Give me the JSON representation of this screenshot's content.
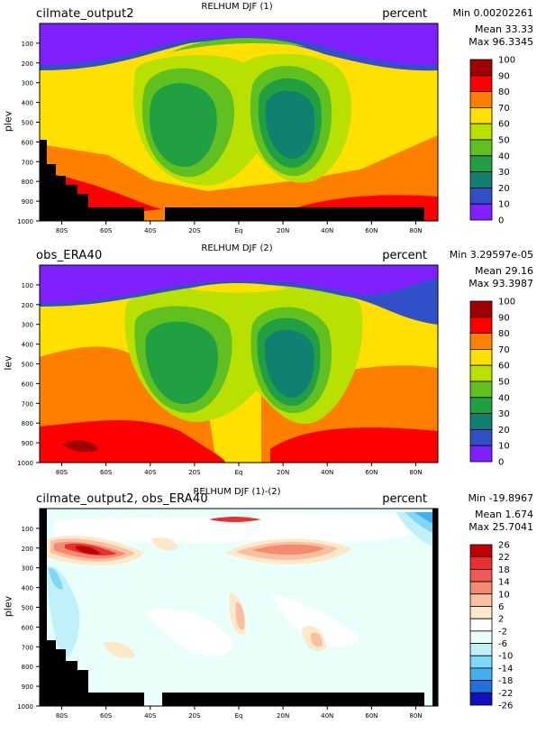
{
  "axes": {
    "x_ticks": [
      "80S",
      "60S",
      "40S",
      "20S",
      "Eq",
      "20N",
      "40N",
      "60N",
      "80N"
    ],
    "y_ticks": [
      "100",
      "200",
      "300",
      "400",
      "500",
      "600",
      "700",
      "800",
      "900",
      "1000"
    ]
  },
  "panels": [
    {
      "id": "p1",
      "title_left": "cilmate_output2",
      "title_center": "RELHUM DJF (1)",
      "title_right": "percent",
      "ylabel": "plev",
      "stat_min": "Min 0.00202261",
      "stat_mean": "Mean 33.33",
      "stat_max": "Max 96.3345",
      "colorbar_labels": [
        "100",
        "90",
        "80",
        "70",
        "60",
        "50",
        "40",
        "30",
        "20",
        "10",
        "0"
      ],
      "colorbar_colors": [
        "#a00000",
        "#ff0000",
        "#ff8000",
        "#ffe000",
        "#b8e000",
        "#60c020",
        "#20a040",
        "#108070",
        "#3050c8",
        "#8020ff"
      ]
    },
    {
      "id": "p2",
      "title_left": "obs_ERA40",
      "title_center": "RELHUM DJF (2)",
      "title_right": "percent",
      "ylabel": "lev",
      "stat_min": "Min 3.29597e-05",
      "stat_mean": "Mean 29.16",
      "stat_max": "Max 93.3987",
      "colorbar_labels": [
        "100",
        "90",
        "80",
        "70",
        "60",
        "50",
        "40",
        "30",
        "20",
        "10",
        "0"
      ],
      "colorbar_colors": [
        "#a00000",
        "#ff0000",
        "#ff8000",
        "#ffe000",
        "#b8e000",
        "#60c020",
        "#20a040",
        "#108070",
        "#3050c8",
        "#8020ff"
      ]
    },
    {
      "id": "p3",
      "title_left": "cilmate_output2, obs_ERA40",
      "title_center": "RELHUM DJF (1)-(2)",
      "title_right": "percent",
      "ylabel": "plev",
      "stat_min": "Min -19.8967",
      "stat_mean": "Mean 1.674",
      "stat_max": "Max 25.7041",
      "colorbar_labels": [
        "26",
        "22",
        "18",
        "14",
        "10",
        "6",
        "2",
        "-2",
        "-6",
        "-10",
        "-14",
        "-18",
        "-22",
        "-26"
      ],
      "colorbar_colors": [
        "#c00000",
        "#e83030",
        "#f05858",
        "#f48a70",
        "#f8c0a0",
        "#fde8c8",
        "#ffffff",
        "#e8fffa",
        "#c0f0f8",
        "#80d8f8",
        "#40b0f0",
        "#2070e0",
        "#1010c0"
      ]
    }
  ],
  "chart_data": [
    {
      "type": "heatmap",
      "title": "RELHUM DJF (1)",
      "xlabel": "",
      "ylabel": "plev",
      "x_ticks": [
        "80S",
        "60S",
        "40S",
        "20S",
        "Eq",
        "20N",
        "40N",
        "60N",
        "80N"
      ],
      "y_ticks": [
        100,
        200,
        300,
        400,
        500,
        600,
        700,
        800,
        900,
        1000
      ],
      "units": "percent",
      "levels": [
        0,
        10,
        20,
        30,
        40,
        50,
        60,
        70,
        80,
        90,
        100
      ],
      "min": 0.00202261,
      "mean": 33.33,
      "max": 96.3345
    },
    {
      "type": "heatmap",
      "title": "RELHUM DJF (2)",
      "xlabel": "",
      "ylabel": "lev",
      "x_ticks": [
        "80S",
        "60S",
        "40S",
        "20S",
        "Eq",
        "20N",
        "40N",
        "60N",
        "80N"
      ],
      "y_ticks": [
        100,
        200,
        300,
        400,
        500,
        600,
        700,
        800,
        900,
        1000
      ],
      "units": "percent",
      "levels": [
        0,
        10,
        20,
        30,
        40,
        50,
        60,
        70,
        80,
        90,
        100
      ],
      "min": 3.29597e-05,
      "mean": 29.16,
      "max": 93.3987
    },
    {
      "type": "heatmap",
      "title": "RELHUM DJF (1)-(2)",
      "xlabel": "",
      "ylabel": "plev",
      "x_ticks": [
        "80S",
        "60S",
        "40S",
        "20S",
        "Eq",
        "20N",
        "40N",
        "60N",
        "80N"
      ],
      "y_ticks": [
        100,
        200,
        300,
        400,
        500,
        600,
        700,
        800,
        900,
        1000
      ],
      "units": "percent",
      "levels": [
        -26,
        -22,
        -18,
        -14,
        -10,
        -6,
        -2,
        2,
        6,
        10,
        14,
        18,
        22,
        26
      ],
      "min": -19.8967,
      "mean": 1.674,
      "max": 25.7041
    }
  ]
}
